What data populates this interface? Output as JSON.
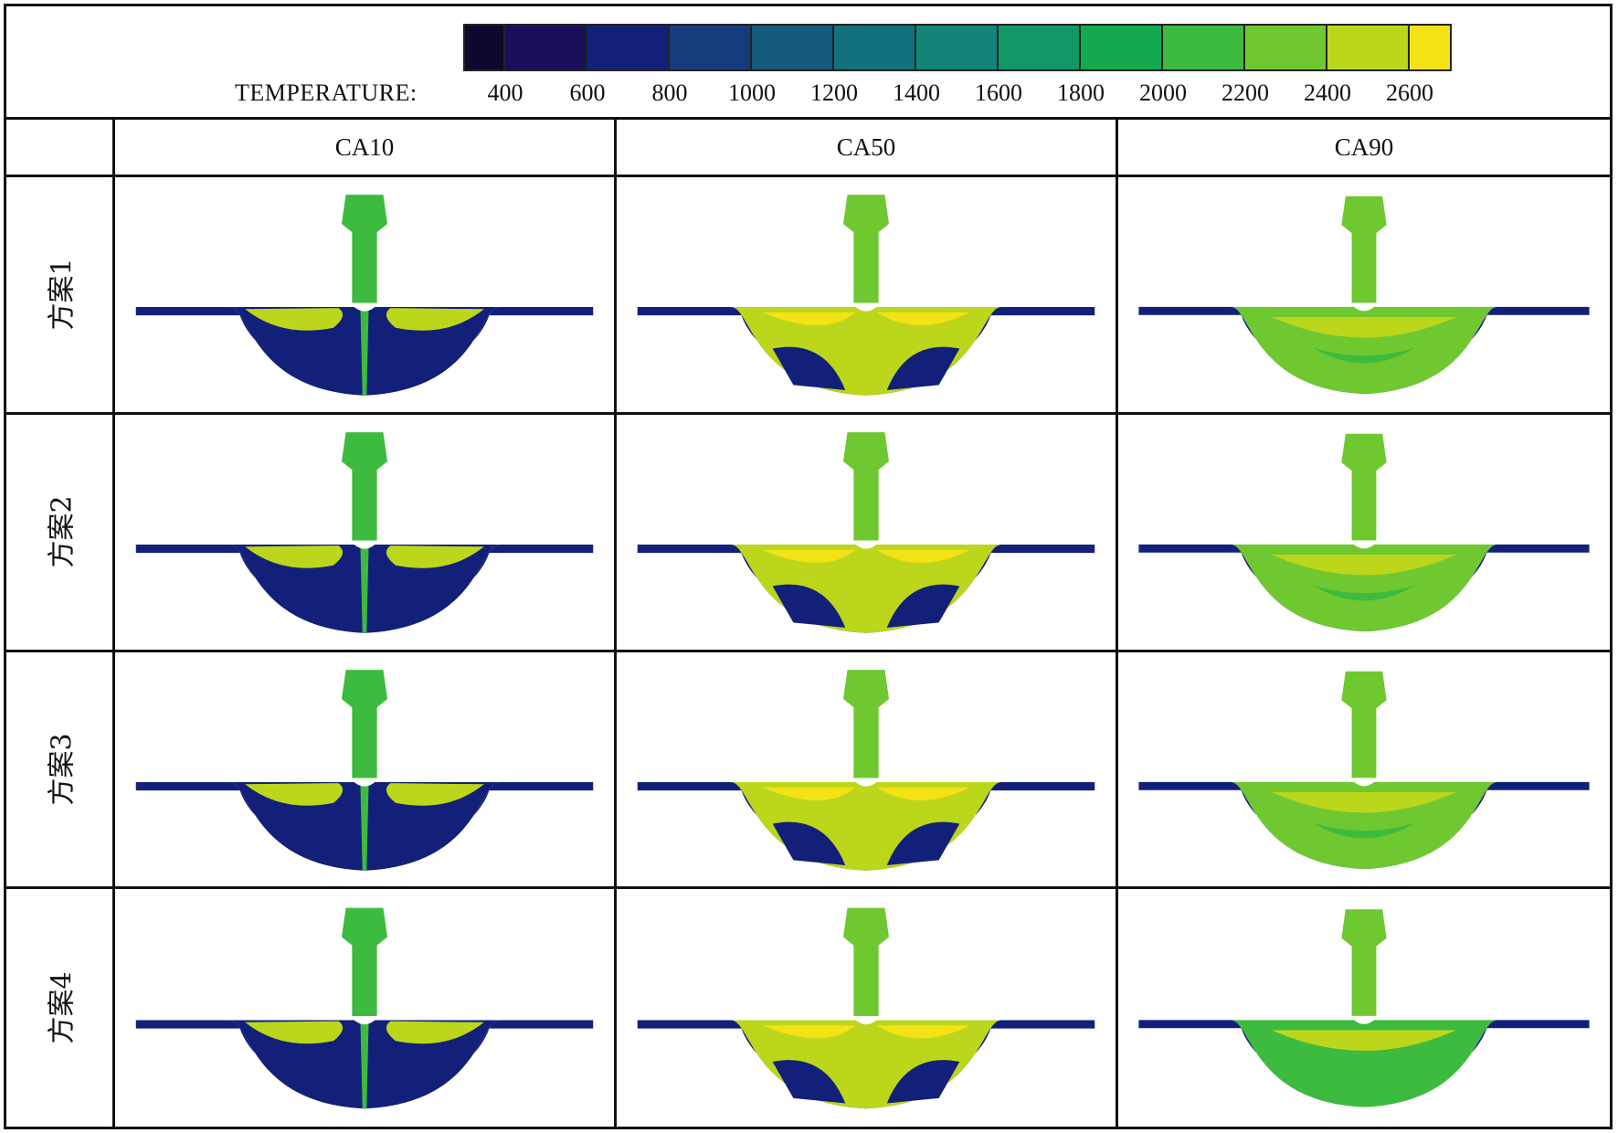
{
  "legend": {
    "label": "TEMPERATURE:",
    "ticks": [
      "400",
      "600",
      "800",
      "1000",
      "1200",
      "1400",
      "1600",
      "1800",
      "2000",
      "2200",
      "2400",
      "2600"
    ],
    "colors": [
      "#0d0830",
      "#1a0e5c",
      "#13207a",
      "#143c7d",
      "#145a7f",
      "#11717c",
      "#128578",
      "#119866",
      "#12aa4d",
      "#3dbb3e",
      "#6fc830",
      "#bcd61c",
      "#f3e216"
    ]
  },
  "columns": [
    "CA10",
    "CA50",
    "CA90"
  ],
  "rows": [
    {
      "label": "方案1",
      "maps": [
        "ca10",
        "ca50",
        "ca90"
      ]
    },
    {
      "label": "方案2",
      "maps": [
        "ca10",
        "ca50",
        "ca90"
      ]
    },
    {
      "label": "方案3",
      "maps": [
        "ca10",
        "ca50",
        "ca90"
      ]
    },
    {
      "label": "方案4",
      "maps": [
        "ca10",
        "ca50",
        "ca90"
      ]
    }
  ],
  "palette": {
    "cold": "#13207a",
    "cool": "#143c7d",
    "mid": "#3dbb3e",
    "warm": "#6fc830",
    "hot": "#bcd61c",
    "hottest": "#f3e216",
    "deep": "#119866"
  }
}
